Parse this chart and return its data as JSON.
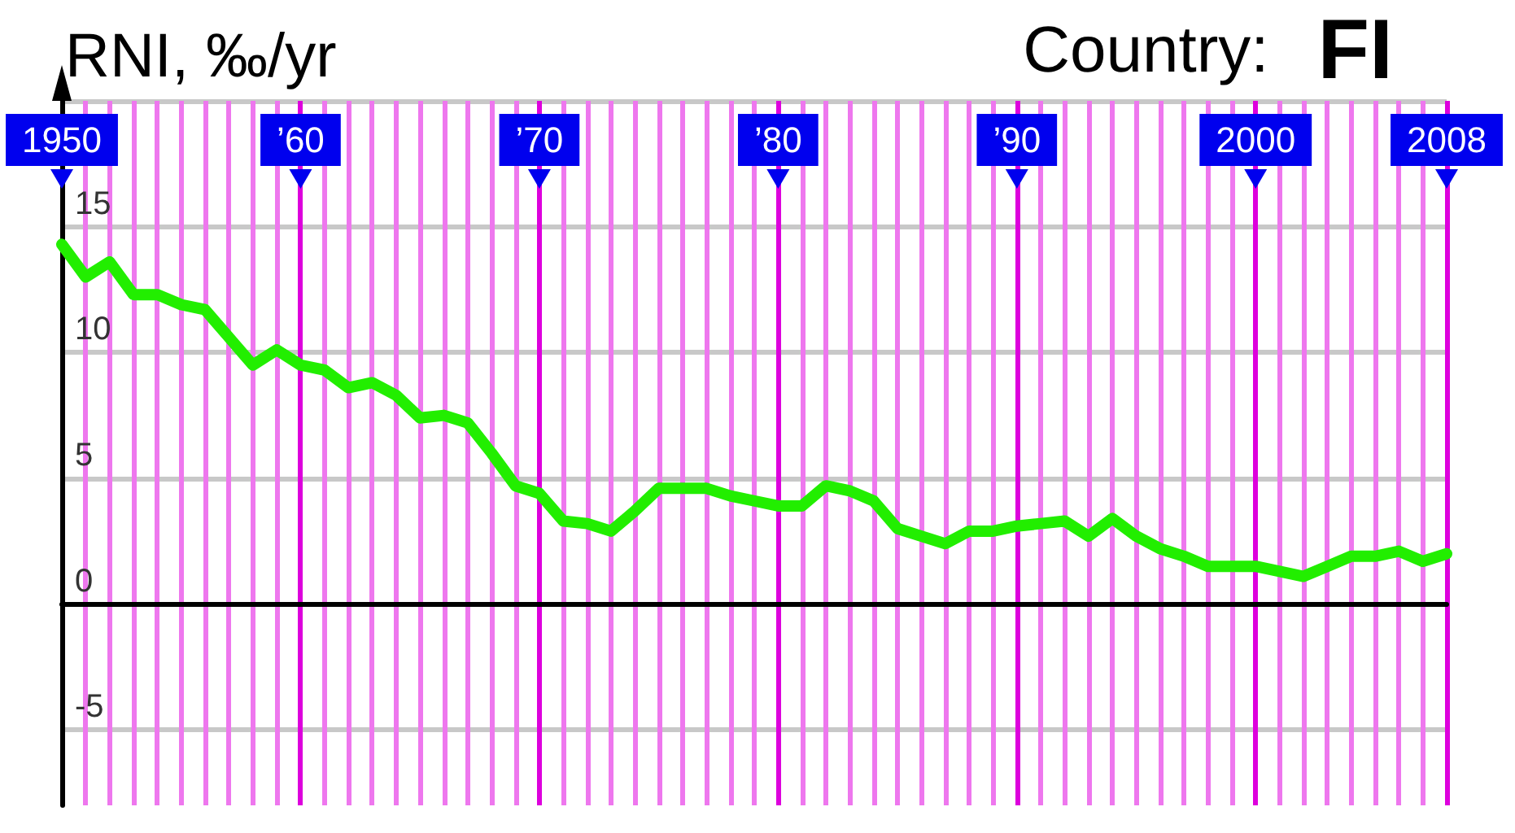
{
  "chart_data": {
    "type": "line",
    "title": "Country: FI",
    "ylabel": "RNI, ‰/yr",
    "x": [
      1950,
      1951,
      1952,
      1953,
      1954,
      1955,
      1956,
      1957,
      1958,
      1959,
      1960,
      1961,
      1962,
      1963,
      1964,
      1965,
      1966,
      1967,
      1968,
      1969,
      1970,
      1971,
      1972,
      1973,
      1974,
      1975,
      1976,
      1977,
      1978,
      1979,
      1980,
      1981,
      1982,
      1983,
      1984,
      1985,
      1986,
      1987,
      1988,
      1989,
      1990,
      1991,
      1992,
      1993,
      1994,
      1995,
      1996,
      1997,
      1998,
      1999,
      2000,
      2001,
      2002,
      2003,
      2004,
      2005,
      2006,
      2007,
      2008
    ],
    "series": [
      {
        "color": "#22ee00",
        "values": [
          14.3,
          13.0,
          13.6,
          12.3,
          12.3,
          11.9,
          11.7,
          10.6,
          9.5,
          10.1,
          9.5,
          9.3,
          8.6,
          8.8,
          8.3,
          7.4,
          7.5,
          7.2,
          6.0,
          4.7,
          4.4,
          3.3,
          3.2,
          2.9,
          3.7,
          4.6,
          4.6,
          4.6,
          4.3,
          4.1,
          3.9,
          3.9,
          4.7,
          4.5,
          4.1,
          3.0,
          2.7,
          2.4,
          2.9,
          2.9,
          3.1,
          3.2,
          3.3,
          2.7,
          3.4,
          2.7,
          2.2,
          1.9,
          1.5,
          1.5,
          1.5,
          1.3,
          1.1,
          1.5,
          1.9,
          1.9,
          2.1,
          1.7,
          2.0
        ]
      }
    ],
    "xlim": [
      1950,
      2008
    ],
    "xticks": [
      {
        "value": 1950,
        "label": "1950"
      },
      {
        "value": 1951,
        "label": null
      },
      {
        "value": 1952,
        "label": null
      },
      {
        "value": 1953,
        "label": null
      },
      {
        "value": 1954,
        "label": null
      },
      {
        "value": 1955,
        "label": null
      },
      {
        "value": 1956,
        "label": null
      },
      {
        "value": 1957,
        "label": null
      },
      {
        "value": 1958,
        "label": null
      },
      {
        "value": 1959,
        "label": null
      },
      {
        "value": 1960,
        "label": "’60"
      },
      {
        "value": 1961,
        "label": null
      },
      {
        "value": 1962,
        "label": null
      },
      {
        "value": 1963,
        "label": null
      },
      {
        "value": 1964,
        "label": null
      },
      {
        "value": 1965,
        "label": null
      },
      {
        "value": 1966,
        "label": null
      },
      {
        "value": 1967,
        "label": null
      },
      {
        "value": 1968,
        "label": null
      },
      {
        "value": 1969,
        "label": null
      },
      {
        "value": 1970,
        "label": "’70"
      },
      {
        "value": 1971,
        "label": null
      },
      {
        "value": 1972,
        "label": null
      },
      {
        "value": 1973,
        "label": null
      },
      {
        "value": 1974,
        "label": null
      },
      {
        "value": 1975,
        "label": null
      },
      {
        "value": 1976,
        "label": null
      },
      {
        "value": 1977,
        "label": null
      },
      {
        "value": 1978,
        "label": null
      },
      {
        "value": 1979,
        "label": null
      },
      {
        "value": 1980,
        "label": "’80"
      },
      {
        "value": 1981,
        "label": null
      },
      {
        "value": 1982,
        "label": null
      },
      {
        "value": 1983,
        "label": null
      },
      {
        "value": 1984,
        "label": null
      },
      {
        "value": 1985,
        "label": null
      },
      {
        "value": 1986,
        "label": null
      },
      {
        "value": 1987,
        "label": null
      },
      {
        "value": 1988,
        "label": null
      },
      {
        "value": 1989,
        "label": null
      },
      {
        "value": 1990,
        "label": "’90"
      },
      {
        "value": 1991,
        "label": null
      },
      {
        "value": 1992,
        "label": null
      },
      {
        "value": 1993,
        "label": null
      },
      {
        "value": 1994,
        "label": null
      },
      {
        "value": 1995,
        "label": null
      },
      {
        "value": 1996,
        "label": null
      },
      {
        "value": 1997,
        "label": null
      },
      {
        "value": 1998,
        "label": null
      },
      {
        "value": 1999,
        "label": null
      },
      {
        "value": 2000,
        "label": "2000"
      },
      {
        "value": 2001,
        "label": null
      },
      {
        "value": 2002,
        "label": null
      },
      {
        "value": 2003,
        "label": null
      },
      {
        "value": 2004,
        "label": null
      },
      {
        "value": 2005,
        "label": null
      },
      {
        "value": 2006,
        "label": null
      },
      {
        "value": 2007,
        "label": null
      },
      {
        "value": 2008,
        "label": "2008"
      }
    ],
    "ylim": [
      -8,
      20
    ],
    "yticks": [
      -5,
      0,
      5,
      10,
      15,
      {
        "value": 20,
        "label": null
      }
    ],
    "grid": true,
    "line_style": "solid"
  }
}
